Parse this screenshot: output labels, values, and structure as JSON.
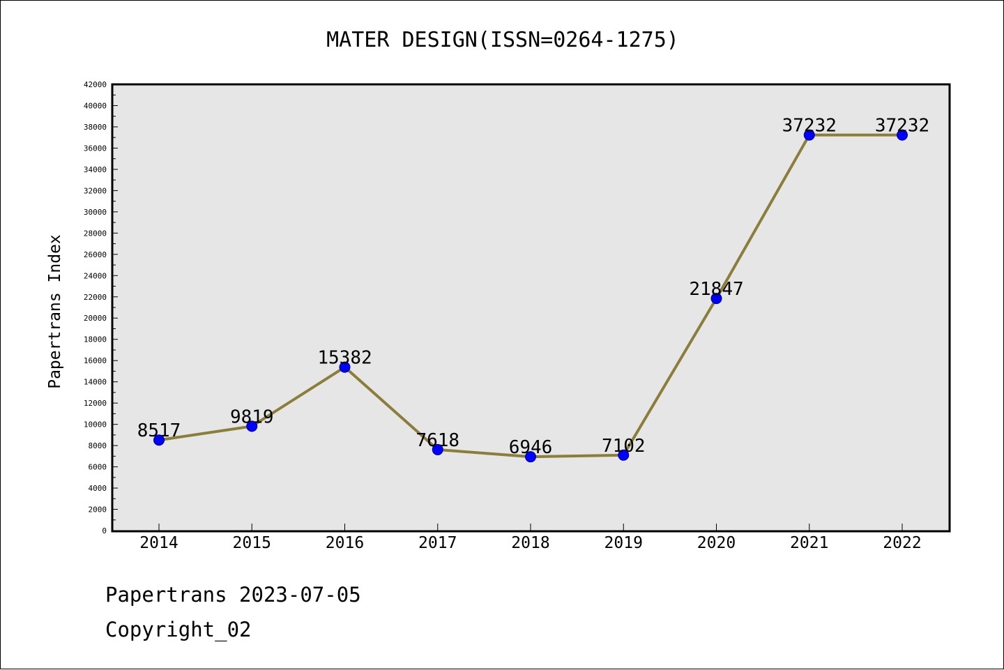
{
  "chart_data": {
    "type": "line",
    "title": "MATER DESIGN(ISSN=0264-1275)",
    "ylabel": "Papertrans Index",
    "xlabel": "",
    "categories": [
      "2014",
      "2015",
      "2016",
      "2017",
      "2018",
      "2019",
      "2020",
      "2021",
      "2022"
    ],
    "values": [
      8517,
      9819,
      15382,
      7618,
      6946,
      7102,
      21847,
      37232,
      37232
    ],
    "data_labels": [
      "8517",
      "9819",
      "15382",
      "7618",
      "6946",
      "7102",
      "21847",
      "37232",
      "37232"
    ],
    "ylim": [
      0,
      42000
    ],
    "yticks": [
      0,
      2000,
      4000,
      6000,
      8000,
      10000,
      12000,
      14000,
      16000,
      18000,
      20000,
      22000,
      24000,
      26000,
      28000,
      30000,
      32000,
      34000,
      36000,
      38000,
      40000,
      42000
    ],
    "grid": false,
    "legend": "none",
    "line_color": "#8b7d3a",
    "marker_color": "#0000ff",
    "plot_background": "#e6e6e6"
  },
  "footer": {
    "line1": "Papertrans 2023-07-05",
    "line2": "Copyright_02"
  }
}
